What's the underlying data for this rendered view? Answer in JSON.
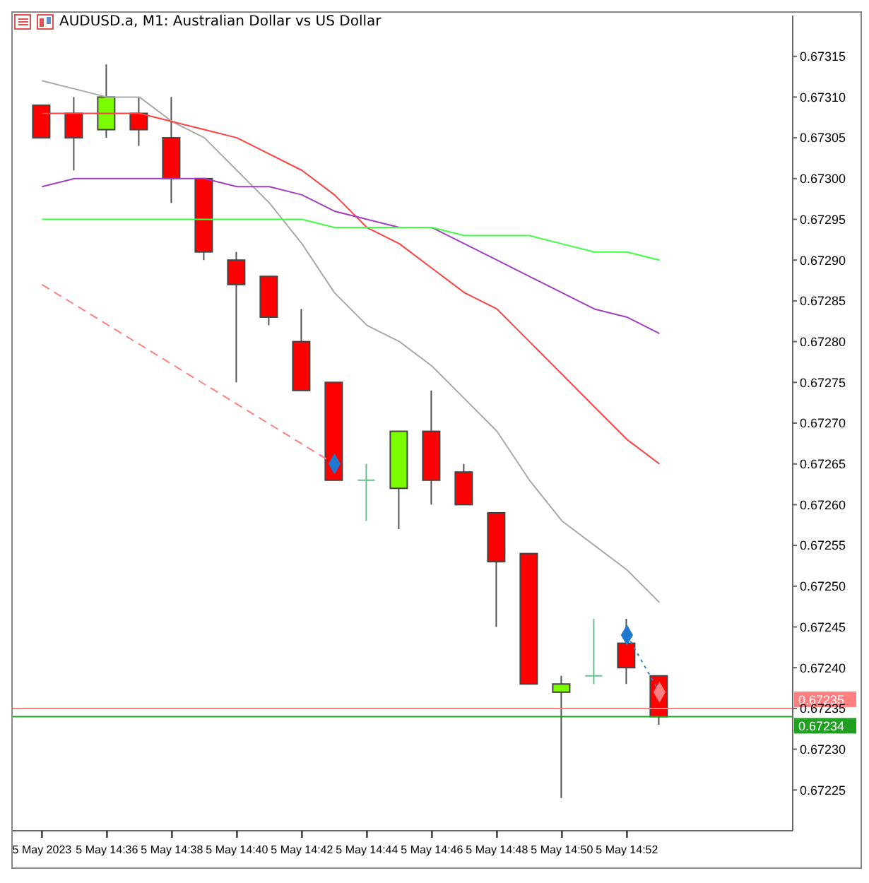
{
  "chart_data": {
    "type": "candlestick",
    "title": "AUDUSD.a, M1:  Australian Dollar vs US Dollar",
    "categories": [
      "5 May 2023",
      null,
      "5 May 14:36",
      null,
      "5 May 14:38",
      null,
      "5 May 14:40",
      null,
      "5 May 14:42",
      null,
      "5 May 14:44",
      null,
      "5 May 14:46",
      null,
      "5 May 14:48",
      null,
      "5 May 14:50",
      null,
      "5 May 14:52",
      null
    ],
    "ohlc": [
      [
        0.67309,
        0.67309,
        0.67305,
        0.67305
      ],
      [
        0.67308,
        0.6731,
        0.67301,
        0.67305
      ],
      [
        0.67306,
        0.67314,
        0.67305,
        0.6731
      ],
      [
        0.67308,
        0.6731,
        0.67304,
        0.67306
      ],
      [
        0.67305,
        0.6731,
        0.67297,
        0.673
      ],
      [
        0.673,
        0.673,
        0.6729,
        0.67291
      ],
      [
        0.6729,
        0.67291,
        0.67275,
        0.67287
      ],
      [
        0.67288,
        0.67288,
        0.67282,
        0.67283
      ],
      [
        0.6728,
        0.67284,
        0.67274,
        0.67274
      ],
      [
        0.67275,
        0.67275,
        0.67263,
        0.67263
      ],
      [
        0.67263,
        0.67265,
        0.67258,
        0.67263
      ],
      [
        0.67262,
        0.67269,
        0.67257,
        0.67269
      ],
      [
        0.67269,
        0.67274,
        0.6726,
        0.67263
      ],
      [
        0.67264,
        0.67265,
        0.6726,
        0.6726
      ],
      [
        0.67259,
        0.67259,
        0.67245,
        0.67253
      ],
      [
        0.67254,
        0.67254,
        0.67238,
        0.67238
      ],
      [
        0.67237,
        0.67239,
        0.67224,
        0.67238
      ],
      [
        0.67239,
        0.67246,
        0.67238,
        0.67239
      ],
      [
        0.67243,
        0.67246,
        0.67238,
        0.6724
      ],
      [
        0.67239,
        0.67239,
        0.67233,
        0.67234
      ]
    ],
    "colors": [
      "#ff0000",
      "#ff0000",
      "#7cfc00",
      "#ff0000",
      "#ff0000",
      "#ff0000",
      "#ff0000",
      "#ff0000",
      "#ff0000",
      "#ff0000",
      "#66c08c",
      "#7cfc00",
      "#ff0000",
      "#ff0000",
      "#ff0000",
      "#ff0000",
      "#7cfc00",
      "#66c08c",
      "#ff0000",
      "#ff0000"
    ],
    "series": [
      {
        "type": "line",
        "color": "#a9a9a9",
        "values": [
          0.67312,
          0.67311,
          0.6731,
          0.6731,
          0.67307,
          0.67305,
          0.67301,
          0.67297,
          0.67292,
          0.67286,
          0.67282,
          0.6728,
          0.67277,
          0.67273,
          0.67269,
          0.67263,
          0.67258,
          0.67255,
          0.67252,
          0.67248
        ]
      },
      {
        "type": "line",
        "color": "#ff4040",
        "values": [
          0.67308,
          0.67308,
          0.67308,
          0.67308,
          0.67307,
          0.67306,
          0.67305,
          0.67303,
          0.67301,
          0.67298,
          0.67294,
          0.67292,
          0.67289,
          0.67286,
          0.67284,
          0.6728,
          0.67276,
          0.67272,
          0.67268,
          0.67265
        ]
      },
      {
        "type": "line",
        "color": "#a040c0",
        "values": [
          0.67299,
          0.673,
          0.673,
          0.673,
          0.673,
          0.673,
          0.67299,
          0.67299,
          0.67298,
          0.67296,
          0.67295,
          0.67294,
          0.67294,
          0.67292,
          0.6729,
          0.67288,
          0.67286,
          0.67284,
          0.67283,
          0.67281
        ]
      },
      {
        "type": "line",
        "color": "#40ff40",
        "values": [
          0.67295,
          0.67295,
          0.67295,
          0.67295,
          0.67295,
          0.67295,
          0.67295,
          0.67295,
          0.67295,
          0.67294,
          0.67294,
          0.67294,
          0.67294,
          0.67293,
          0.67293,
          0.67293,
          0.67292,
          0.67291,
          0.67291,
          0.6729
        ]
      },
      {
        "type": "line",
        "color": "#ff8080",
        "line_style": "dashed",
        "values": [
          0.67287,
          null,
          null,
          null,
          null,
          null,
          null,
          null,
          null,
          0.67265,
          null,
          null,
          null,
          null,
          null,
          null,
          null,
          null,
          null,
          null
        ]
      },
      {
        "type": "line",
        "color": "#4080c0",
        "line_style": "dotted",
        "values": [
          null,
          null,
          null,
          null,
          null,
          null,
          null,
          null,
          null,
          null,
          null,
          null,
          null,
          null,
          null,
          null,
          null,
          null,
          0.67244,
          0.67237
        ]
      },
      {
        "type": "scatter",
        "marker": "diamond",
        "colors": [
          null,
          null,
          null,
          null,
          null,
          null,
          null,
          null,
          null,
          "#1e78d0",
          null,
          null,
          null,
          null,
          null,
          null,
          null,
          null,
          "#1e78d0",
          "#ff8080"
        ],
        "values": [
          null,
          null,
          null,
          null,
          null,
          null,
          null,
          null,
          null,
          0.67265,
          null,
          null,
          null,
          null,
          null,
          null,
          null,
          null,
          0.67244,
          0.67237
        ]
      }
    ],
    "ylim": [
      0.6722,
      0.6732
    ],
    "yticks": [
      0.67225,
      {
        "value": 0.6723,
        "label": "0.67230"
      },
      0.67235,
      {
        "value": 0.6724,
        "label": "0.67240"
      },
      0.67245,
      {
        "value": 0.6725,
        "label": "0.67250"
      },
      0.67255,
      {
        "value": 0.6726,
        "label": "0.67260"
      },
      0.67265,
      {
        "value": 0.6727,
        "label": "0.67270"
      },
      0.67275,
      {
        "value": 0.6728,
        "label": "0.67280"
      },
      0.67285,
      {
        "value": 0.6729,
        "label": "0.67290"
      },
      0.67295,
      {
        "value": 0.673,
        "label": "0.67300"
      },
      0.67305,
      {
        "value": 0.6731,
        "label": "0.67310"
      },
      0.67315
    ],
    "ref_lines": [
      {
        "axis": "y",
        "value": 0.67235,
        "label": "0.67235",
        "color": "#ff8080"
      },
      {
        "axis": "y",
        "value": 0.67234,
        "label": "0.67234",
        "color": "#20a020"
      }
    ]
  }
}
